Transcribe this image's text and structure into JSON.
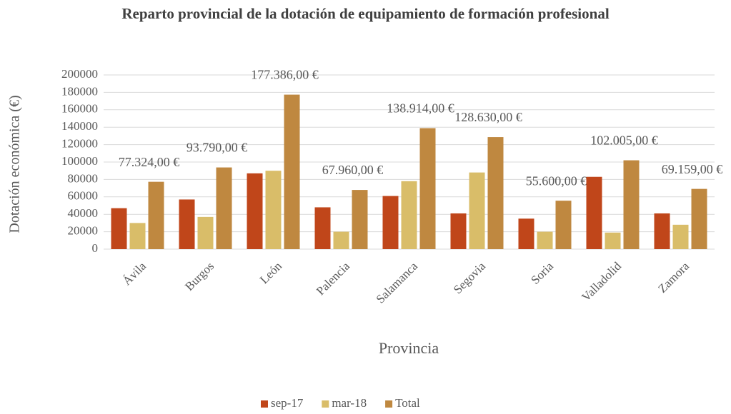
{
  "chart_data": {
    "type": "bar",
    "title": "Reparto provincial de la dotación de equipamiento de formación profesional",
    "x_label": "Provincia",
    "y_label": "Dotación económica (€)",
    "categories": [
      "Ávila",
      "Burgos",
      "León",
      "Palencia",
      "Salamanca",
      "Segovia",
      "Soria",
      "Valladolid",
      "Zamora"
    ],
    "series": [
      {
        "name": "sep-17",
        "color": "#c0461a",
        "values": [
          47000,
          57000,
          87000,
          48000,
          61000,
          41000,
          35000,
          83000,
          41000
        ]
      },
      {
        "name": "mar-18",
        "color": "#d9bd69",
        "values": [
          30000,
          37000,
          90000,
          20000,
          78000,
          88000,
          20000,
          19000,
          28000
        ]
      },
      {
        "name": "Total",
        "color": "#bf8840",
        "values": [
          77324,
          93790,
          177386,
          67960,
          138914,
          128630,
          55600,
          102005,
          69159
        ],
        "value_labels": [
          "77.324,00 €",
          "93.790,00 €",
          "177.386,00 €",
          "67.960,00 €",
          "138.914,00 €",
          "128.630,00 €",
          "55.600,00 €",
          "102.005,00 €",
          "69.159,00 €"
        ]
      }
    ],
    "ylim": [
      0,
      200000
    ],
    "yticks": [
      0,
      20000,
      40000,
      60000,
      80000,
      100000,
      120000,
      140000,
      160000,
      180000,
      200000
    ],
    "grid": true,
    "legend": "bottom"
  }
}
